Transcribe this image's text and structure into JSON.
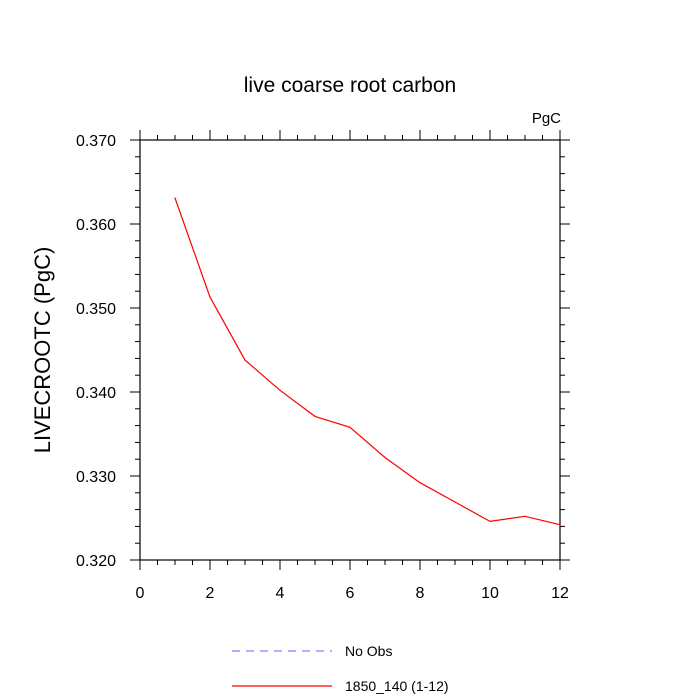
{
  "chart_data": {
    "type": "line",
    "title": "live coarse root carbon",
    "units_label": "PgC",
    "xlabel": "",
    "ylabel": "LIVECROOTC  (PgC)",
    "xlim": [
      0,
      12
    ],
    "ylim": [
      0.32,
      0.37
    ],
    "x_ticks": [
      "0",
      "2",
      "4",
      "6",
      "8",
      "10",
      "12"
    ],
    "y_ticks": [
      "0.320",
      "0.330",
      "0.340",
      "0.350",
      "0.360",
      "0.370"
    ],
    "grid": false,
    "legend_position": "bottom",
    "series": [
      {
        "name": "No Obs",
        "color": "#8080ff",
        "dash": "dashed",
        "x": [],
        "values": []
      },
      {
        "name": "1850_140 (1-12)",
        "color": "#ff0000",
        "dash": "solid",
        "x": [
          1,
          2,
          3,
          4,
          5,
          6,
          7,
          8,
          9,
          10,
          11,
          12
        ],
        "values": [
          0.3631,
          0.3513,
          0.3438,
          0.3402,
          0.3371,
          0.3358,
          0.3322,
          0.3292,
          0.3269,
          0.3246,
          0.3252,
          0.3242
        ]
      }
    ]
  }
}
